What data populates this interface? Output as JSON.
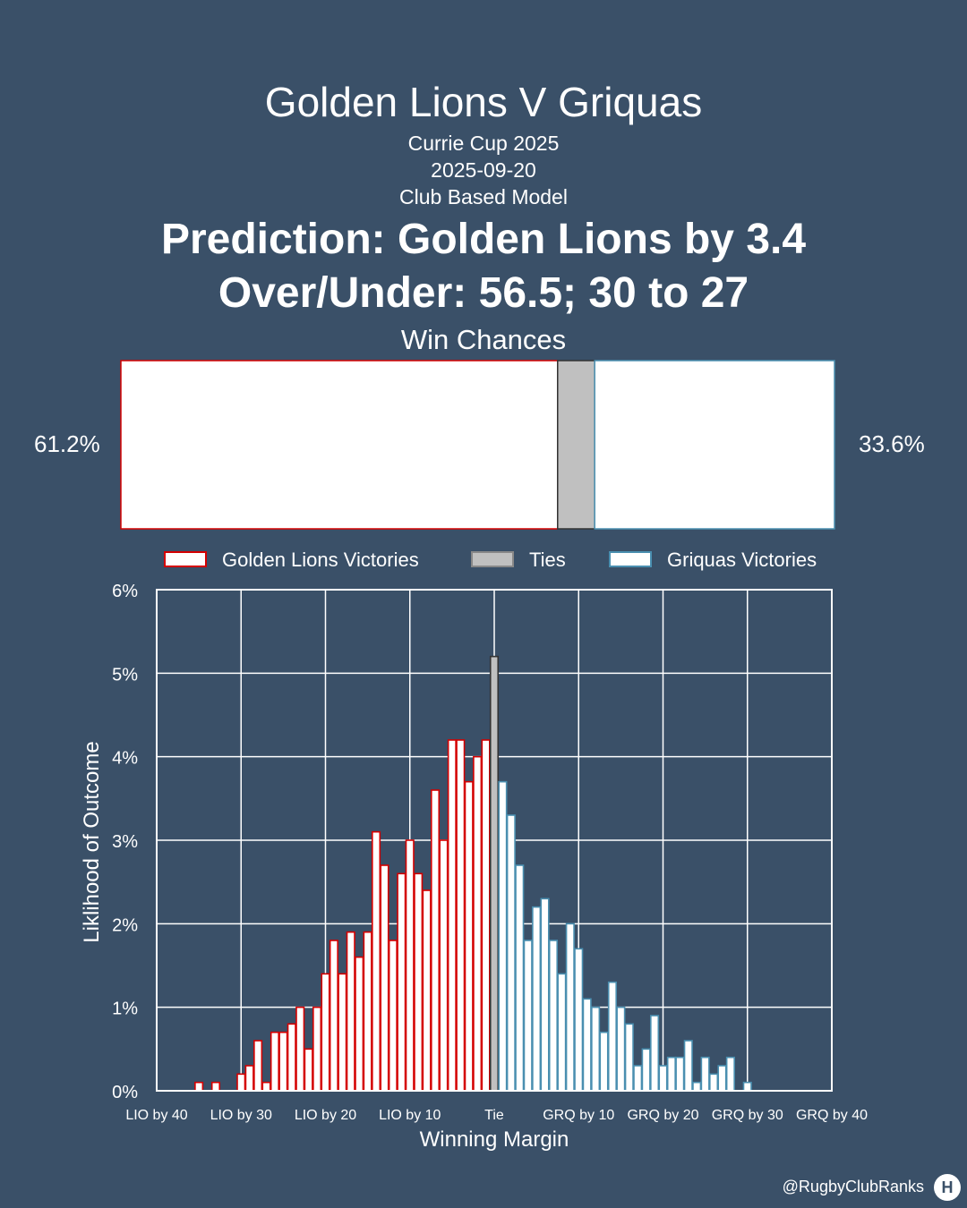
{
  "header": {
    "title": "Golden Lions V Griquas",
    "competition": "Currie Cup 2025",
    "date": "2025-09-20",
    "model": "Club Based Model",
    "prediction": "Prediction: Golden Lions by 3.4",
    "over_under": "Over/Under: 56.5; 30 to 27"
  },
  "win_chances": {
    "title": "Win Chances",
    "home_pct_label": "61.2%",
    "away_pct_label": "33.6%",
    "home": 61.2,
    "tie": 5.2,
    "away": 33.6
  },
  "legend": {
    "home": "Golden Lions Victories",
    "tie": "Ties",
    "away": "Griquas Victories"
  },
  "colors": {
    "background": "#3a5068",
    "home_edge": "#d40000",
    "away_edge": "#4a8fb0",
    "tie_fill": "#c0c0c0",
    "bar_fill": "#ffffff"
  },
  "chart_data": {
    "type": "bar",
    "title": "",
    "xlabel": "Winning Margin",
    "ylabel": "Liklihood of Outcome",
    "ylim": [
      0,
      6
    ],
    "y_ticks": [
      "0%",
      "1%",
      "2%",
      "3%",
      "4%",
      "5%",
      "6%"
    ],
    "x_ticks": [
      "LIO by 40",
      "LIO by 30",
      "LIO by 20",
      "LIO by 10",
      "Tie",
      "GRQ by 10",
      "GRQ by 20",
      "GRQ by 30",
      "GRQ by 40"
    ],
    "xlim": [
      -40,
      40
    ],
    "grid": true,
    "legend_position": "top",
    "series": [
      {
        "name": "Golden Lions Victories",
        "x": [
          -35,
          -33,
          -31,
          -30,
          -29,
          -28,
          -27,
          -26,
          -25,
          -24,
          -23,
          -22,
          -21,
          -20,
          -19,
          -18,
          -17,
          -16,
          -15,
          -14,
          -13,
          -12,
          -11,
          -10,
          -9,
          -8,
          -7,
          -6,
          -5,
          -4,
          -3,
          -2,
          -1
        ],
        "values": [
          0.1,
          0.1,
          0.0,
          0.2,
          0.3,
          0.6,
          0.1,
          0.7,
          0.7,
          0.8,
          1.0,
          0.5,
          1.0,
          1.4,
          1.8,
          1.4,
          1.9,
          1.6,
          1.9,
          3.1,
          2.7,
          1.8,
          2.6,
          3.0,
          2.6,
          2.4,
          3.6,
          3.0,
          4.2,
          4.2,
          3.7,
          4.0,
          4.2
        ]
      },
      {
        "name": "Ties",
        "x": [
          0
        ],
        "values": [
          5.2
        ]
      },
      {
        "name": "Griquas Victories",
        "x": [
          1,
          2,
          3,
          4,
          5,
          6,
          7,
          8,
          9,
          10,
          11,
          12,
          13,
          14,
          15,
          16,
          17,
          18,
          19,
          20,
          21,
          22,
          23,
          24,
          25,
          26,
          27,
          28,
          29,
          30,
          31,
          32,
          33,
          34,
          35
        ],
        "values": [
          3.7,
          3.3,
          2.7,
          1.8,
          2.2,
          2.3,
          1.8,
          1.4,
          2.0,
          1.7,
          1.1,
          1.0,
          0.7,
          1.3,
          1.0,
          0.8,
          0.3,
          0.5,
          0.9,
          0.3,
          0.4,
          0.4,
          0.6,
          0.1,
          0.4,
          0.2,
          0.3,
          0.4,
          0.0,
          0.1,
          0.0,
          0.0,
          0.0,
          0.0,
          0.0
        ]
      }
    ]
  },
  "footer": {
    "handle": "@RugbyClubRanks",
    "logo_text": "H"
  }
}
